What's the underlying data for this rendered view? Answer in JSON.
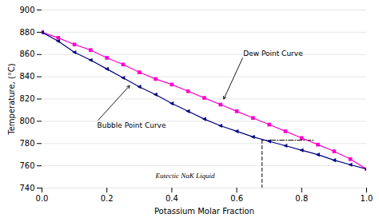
{
  "chart_data": {
    "type": "line",
    "xlabel": "Potassium Molar Fraction",
    "ylabel": "Temperature, (°C)",
    "xlim": [
      0,
      1
    ],
    "ylim": [
      740,
      900
    ],
    "xticks": [
      {
        "value": 0,
        "label": "0.0"
      },
      0.2,
      0.4,
      0.6,
      0.8,
      {
        "value": 1.0,
        "label": "1.0"
      }
    ],
    "yticks": [
      740,
      760,
      780,
      800,
      820,
      840,
      860,
      880,
      900
    ],
    "grid": "y",
    "x": [
      0.0,
      0.05,
      0.1,
      0.15,
      0.2,
      0.25,
      0.3,
      0.35,
      0.4,
      0.45,
      0.5,
      0.55,
      0.6,
      0.65,
      0.7,
      0.75,
      0.8,
      0.85,
      0.9,
      0.95,
      1.0
    ],
    "series": [
      {
        "color": "#ff00cc",
        "marker": "square",
        "values": [
          880,
          875,
          869,
          864,
          857,
          851,
          844,
          838,
          833,
          827,
          821,
          815,
          809,
          803,
          797,
          791,
          785,
          779,
          773,
          766,
          757
        ]
      },
      {
        "color": "#000080",
        "marker": "triangle-left",
        "values": [
          880,
          872,
          862,
          855,
          847,
          839,
          831,
          824,
          816,
          809,
          802,
          796,
          791,
          786,
          782,
          778,
          774,
          770,
          765,
          761,
          757
        ]
      }
    ],
    "lines": [
      {
        "x": [
          0.678,
          0.678
        ],
        "y": [
          740,
          783
        ],
        "color": "#000000",
        "line_style": "dashed"
      },
      {
        "x": [
          0.678,
          0.84
        ],
        "y": [
          783,
          783
        ],
        "color": "#000000",
        "line_style": "dashdot"
      }
    ],
    "annotations": [
      {
        "text": "Eutectic NaK Liquid",
        "x": 0.35,
        "y": 748
      },
      {
        "text": "Dew Point Curve",
        "x": 0.62,
        "y": 858,
        "arrow_to": [
          0.56,
          820
        ]
      },
      {
        "text": "Bubble Point Curve",
        "x": 0.17,
        "y": 800,
        "arrow_to": [
          0.27,
          832
        ]
      }
    ]
  }
}
